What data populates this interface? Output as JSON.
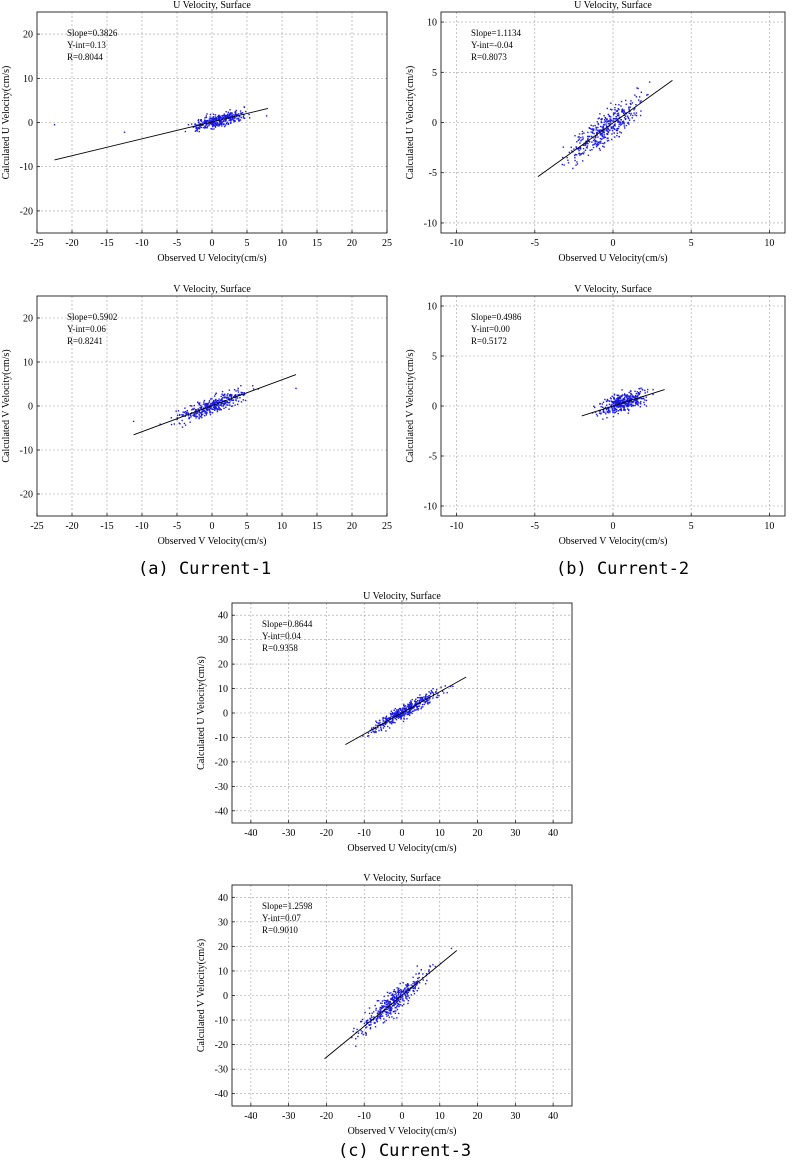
{
  "captions": [
    "(a) Current-1",
    "(b) Current-2",
    "(c) Current-3"
  ],
  "chart_data": [
    {
      "type": "scatter",
      "panel": "(a) Current-1",
      "title": "U Velocity, Surface",
      "xlabel": "Observed U Velocity(cm/s)",
      "ylabel": "Calculated U Velocity(cm/s)",
      "xlim": [
        -25,
        25
      ],
      "ylim": [
        -25,
        25
      ],
      "xticks": [
        -25,
        -20,
        -15,
        -10,
        -5,
        0,
        5,
        10,
        15,
        20,
        25
      ],
      "yticks": [
        -20,
        -10,
        0,
        10,
        20
      ],
      "grid": true,
      "stats": [
        "Slope=0.3826",
        "Y-int=0.13",
        "R=0.8044"
      ],
      "fit": {
        "slope": 0.3826,
        "intercept": 0.13,
        "x_range": [
          -22.5,
          8
        ]
      },
      "points": {
        "n": 380,
        "x_range": [
          -6,
          8
        ],
        "y_spread": 1.2,
        "outliers": [
          [
            -22.5,
            -0.5
          ],
          [
            -12.5,
            -2.2
          ],
          [
            7.8,
            1.5
          ]
        ]
      }
    },
    {
      "type": "scatter",
      "panel": "(b) Current-2",
      "title": "U Velocity, Surface",
      "xlabel": "Observed U Velocity(cm/s)",
      "ylabel": "Calculated U Velocity(cm/s)",
      "xlim": [
        -11,
        11
      ],
      "ylim": [
        -11,
        11
      ],
      "xticks": [
        -10,
        -5,
        0,
        5,
        10
      ],
      "yticks": [
        -10,
        -5,
        0,
        5,
        10
      ],
      "grid": true,
      "stats": [
        "Slope=1.1134",
        "Y-int=-0.04",
        "R=0.8073"
      ],
      "fit": {
        "slope": 1.1134,
        "intercept": -0.04,
        "x_range": [
          -4.8,
          3.8
        ]
      },
      "points": {
        "n": 420,
        "x_range": [
          -4.8,
          3.8
        ],
        "y_spread": 1.3,
        "outliers": []
      }
    },
    {
      "type": "scatter",
      "panel": "(a) Current-1",
      "title": "V Velocity, Surface",
      "xlabel": "Observed V Velocity(cm/s)",
      "ylabel": "Calculated V Velocity(cm/s)",
      "xlim": [
        -25,
        25
      ],
      "ylim": [
        -25,
        25
      ],
      "xticks": [
        -25,
        -20,
        -15,
        -10,
        -5,
        0,
        5,
        10,
        15,
        20,
        25
      ],
      "yticks": [
        -20,
        -10,
        0,
        10,
        20
      ],
      "grid": true,
      "stats": [
        "Slope=0.5902",
        "Y-int=0.06",
        "R=0.8241"
      ],
      "fit": {
        "slope": 0.5902,
        "intercept": 0.06,
        "x_range": [
          -11.2,
          12
        ]
      },
      "points": {
        "n": 380,
        "x_range": [
          -9,
          9
        ],
        "y_spread": 1.6,
        "outliers": [
          [
            -11.2,
            -3.5
          ],
          [
            12,
            4
          ]
        ]
      }
    },
    {
      "type": "scatter",
      "panel": "(b) Current-2",
      "title": "V Velocity, Surface",
      "xlabel": "Observed V Velocity(cm/s)",
      "ylabel": "Calculated V Velocity(cm/s)",
      "xlim": [
        -11,
        11
      ],
      "ylim": [
        -11,
        11
      ],
      "xticks": [
        -10,
        -5,
        0,
        5,
        10
      ],
      "yticks": [
        -10,
        -5,
        0,
        5,
        10
      ],
      "grid": true,
      "stats": [
        "Slope=0.4986",
        "Y-int=0.00",
        "R=0.5172"
      ],
      "fit": {
        "slope": 0.4986,
        "intercept": 0.0,
        "x_range": [
          -2,
          3.3
        ]
      },
      "points": {
        "n": 420,
        "x_range": [
          -2.2,
          3.4
        ],
        "y_spread": 0.75,
        "outliers": []
      }
    },
    {
      "type": "scatter",
      "panel": "(c) Current-3",
      "title": "U Velocity, Surface",
      "xlabel": "Observed U Velocity(cm/s)",
      "ylabel": "Calculated U Velocity(cm/s)",
      "xlim": [
        -45,
        45
      ],
      "ylim": [
        -45,
        45
      ],
      "xticks": [
        -40,
        -30,
        -20,
        -10,
        0,
        10,
        20,
        30,
        40
      ],
      "yticks": [
        -40,
        -30,
        -20,
        -10,
        0,
        10,
        20,
        30,
        40
      ],
      "grid": true,
      "stats": [
        "Slope=0.8644",
        "Y-int=0.04",
        "R=0.9358"
      ],
      "fit": {
        "slope": 0.8644,
        "intercept": 0.04,
        "x_range": [
          -15,
          17
        ]
      },
      "points": {
        "n": 420,
        "x_range": [
          -15,
          17
        ],
        "y_spread": 2.3,
        "outliers": []
      }
    },
    {
      "type": "scatter",
      "panel": "(c) Current-3",
      "title": "V Velocity, Surface",
      "xlabel": "Observed V Velocity(cm/s)",
      "ylabel": "Calculated V Velocity(cm/s)",
      "xlim": [
        -45,
        45
      ],
      "ylim": [
        -45,
        45
      ],
      "xticks": [
        -40,
        -30,
        -20,
        -10,
        0,
        10,
        20,
        30,
        40
      ],
      "yticks": [
        -40,
        -30,
        -20,
        -10,
        0,
        10,
        20,
        30,
        40
      ],
      "grid": true,
      "stats": [
        "Slope=1.2598",
        "Y-int=0.07",
        "R=0.9010"
      ],
      "fit": {
        "slope": 1.2598,
        "intercept": 0.07,
        "x_range": [
          -20.5,
          14.5
        ]
      },
      "points": {
        "n": 420,
        "x_range": [
          -20,
          15
        ],
        "y_spread": 4.0,
        "outliers": []
      }
    }
  ],
  "colors": {
    "points": "#1a1adf",
    "fit": "#000000",
    "grid": "#a0a0a0",
    "axis": "#000000"
  }
}
